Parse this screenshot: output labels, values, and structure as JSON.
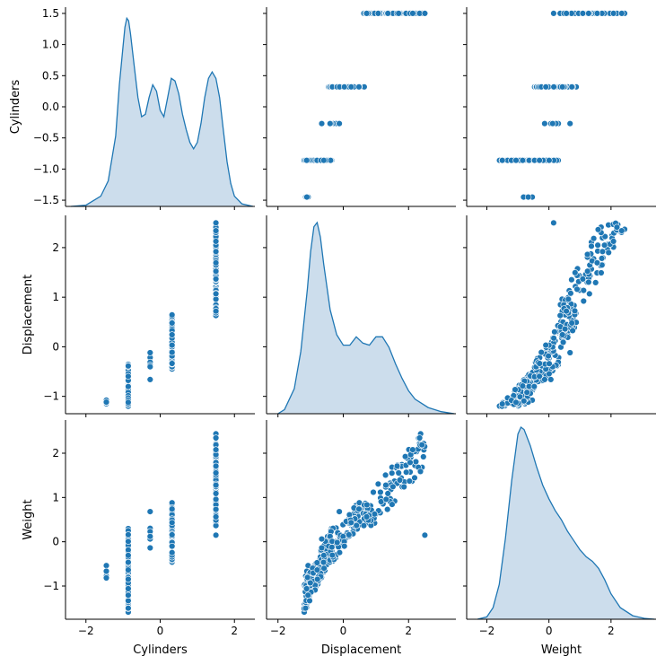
{
  "chart_data": {
    "type": "pairplot",
    "variables": [
      "Cylinders",
      "Displacement",
      "Weight"
    ],
    "point_color": "#1f77b4",
    "kde_fill": "#c6d9ea",
    "kde_line": "#1f77b4",
    "axis_ranges": {
      "Cylinders": [
        -2.55,
        2.55
      ],
      "Displacement": [
        -2.35,
        3.45
      ],
      "Weight": [
        -2.65,
        3.45
      ]
    },
    "y_ranges": {
      "Cylinders": [
        -1.6,
        1.6
      ],
      "Displacement": [
        -1.35,
        2.65
      ],
      "Weight": [
        -1.75,
        2.75
      ]
    },
    "ticks": {
      "Cylinders_x": [
        -2,
        0,
        2
      ],
      "Cylinders_y": [
        "-1.5",
        "-1.0",
        "-0.5",
        "0.0",
        "0.5",
        "1.0",
        "1.5"
      ],
      "Displacement_x": [
        -2,
        0,
        2
      ],
      "Displacement_y": [
        -1,
        0,
        1,
        2
      ],
      "Weight_x": [
        -2,
        0,
        2
      ],
      "Weight_y": [
        -1,
        0,
        1,
        2
      ]
    },
    "cylinder_levels": [
      -1.45,
      -0.86,
      -0.27,
      0.32,
      1.5
    ],
    "cylinder_ranges": {
      "Displacement": [
        [
          -1.15,
          -1.05
        ],
        [
          -1.2,
          -0.35
        ],
        [
          -0.7,
          -0.1
        ],
        [
          -0.45,
          0.65
        ],
        [
          0.62,
          2.5
        ]
      ],
      "Weight": [
        [
          -1.0,
          -0.3
        ],
        [
          -1.6,
          0.32
        ],
        [
          -0.2,
          0.68
        ],
        [
          -0.6,
          1.1
        ],
        [
          0.1,
          2.55
        ]
      ]
    },
    "kde": {
      "Cylinders": {
        "x": [
          -2.4,
          -2.0,
          -1.6,
          -1.4,
          -1.2,
          -1.1,
          -1.0,
          -0.95,
          -0.9,
          -0.85,
          -0.8,
          -0.7,
          -0.6,
          -0.5,
          -0.4,
          -0.3,
          -0.2,
          -0.1,
          0.0,
          0.1,
          0.2,
          0.3,
          0.4,
          0.5,
          0.6,
          0.7,
          0.8,
          0.9,
          1.0,
          1.1,
          1.2,
          1.3,
          1.4,
          1.5,
          1.6,
          1.7,
          1.8,
          1.9,
          2.0,
          2.2,
          2.5
        ],
        "y": [
          0.0,
          0.01,
          0.08,
          0.2,
          0.55,
          0.95,
          1.25,
          1.4,
          1.47,
          1.45,
          1.35,
          1.1,
          0.85,
          0.7,
          0.72,
          0.85,
          0.95,
          0.9,
          0.75,
          0.7,
          0.85,
          1.0,
          0.98,
          0.88,
          0.72,
          0.6,
          0.5,
          0.45,
          0.5,
          0.65,
          0.85,
          1.0,
          1.05,
          1.0,
          0.85,
          0.6,
          0.35,
          0.18,
          0.08,
          0.02,
          0.0
        ],
        "peak_scale": 1.5
      },
      "Displacement": {
        "x": [
          -2.0,
          -1.8,
          -1.5,
          -1.3,
          -1.1,
          -1.0,
          -0.9,
          -0.8,
          -0.7,
          -0.6,
          -0.4,
          -0.2,
          0.0,
          0.2,
          0.4,
          0.6,
          0.8,
          1.0,
          1.2,
          1.4,
          1.6,
          1.8,
          2.0,
          2.2,
          2.6,
          3.0,
          3.4
        ],
        "y": [
          0.0,
          0.02,
          0.12,
          0.3,
          0.6,
          0.78,
          0.9,
          0.92,
          0.85,
          0.72,
          0.5,
          0.38,
          0.33,
          0.33,
          0.37,
          0.34,
          0.33,
          0.37,
          0.37,
          0.32,
          0.24,
          0.17,
          0.11,
          0.07,
          0.03,
          0.01,
          0.0
        ],
        "peak_scale": 0.92
      },
      "Weight": {
        "x": [
          -2.3,
          -2.0,
          -1.8,
          -1.6,
          -1.4,
          -1.2,
          -1.0,
          -0.9,
          -0.8,
          -0.6,
          -0.4,
          -0.2,
          0.0,
          0.2,
          0.4,
          0.6,
          0.8,
          1.0,
          1.2,
          1.4,
          1.6,
          1.8,
          2.0,
          2.3,
          2.7,
          3.1,
          3.4
        ],
        "y": [
          0.0,
          0.01,
          0.05,
          0.15,
          0.35,
          0.6,
          0.8,
          0.83,
          0.82,
          0.75,
          0.66,
          0.58,
          0.52,
          0.47,
          0.43,
          0.38,
          0.34,
          0.3,
          0.27,
          0.25,
          0.22,
          0.17,
          0.11,
          0.05,
          0.015,
          0.003,
          0.0
        ],
        "peak_scale": 0.83
      }
    }
  }
}
